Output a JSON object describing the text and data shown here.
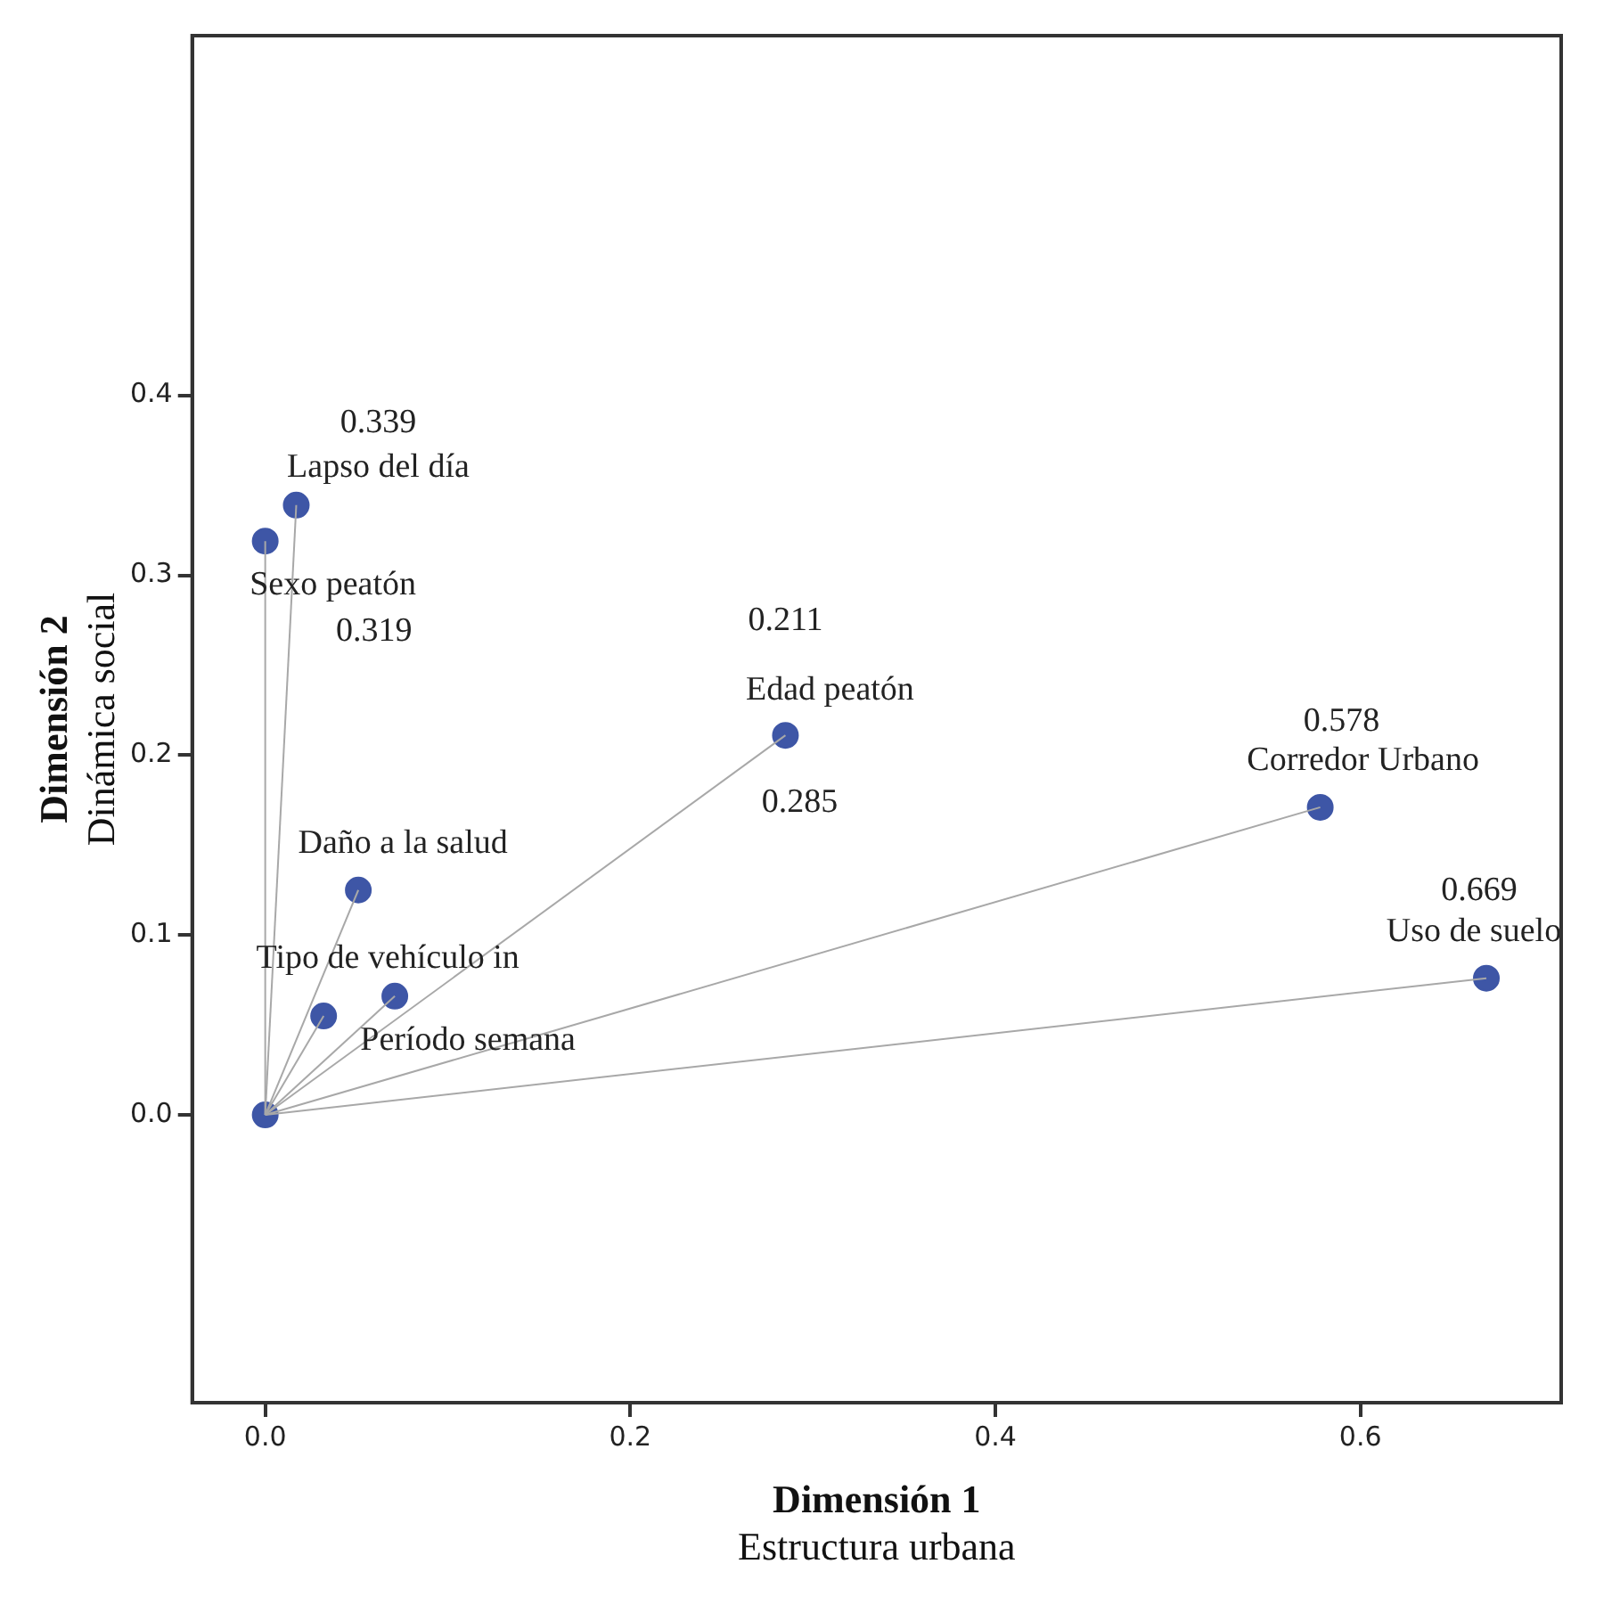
{
  "chart_data": {
    "type": "scatter",
    "xlabel": "Dimensión 1\nEstructura urbana",
    "ylabel": "Dimensión 2\nDinámica social",
    "xlim": [
      -0.04,
      0.71
    ],
    "ylim": [
      -0.16,
      0.6
    ],
    "xticks": [
      {
        "value": 0,
        "label": "0.0"
      },
      0.2,
      0.4,
      0.6
    ],
    "yticks": [
      {
        "value": 0,
        "label": "0.0"
      },
      0.1,
      0.2,
      0.3,
      0.4
    ],
    "grid": false,
    "legend": false,
    "marker": "circle",
    "series": [
      {
        "type": "line",
        "color": "#a8a8a8",
        "marker": "none",
        "x": [
          0,
          0.017
        ],
        "values": [
          0,
          0.339
        ]
      },
      {
        "type": "line",
        "color": "#a8a8a8",
        "marker": "none",
        "x": [
          0,
          0.0
        ],
        "values": [
          0,
          0.319
        ]
      },
      {
        "type": "line",
        "color": "#a8a8a8",
        "marker": "none",
        "x": [
          0,
          0.285
        ],
        "values": [
          0,
          0.211
        ]
      },
      {
        "type": "line",
        "color": "#a8a8a8",
        "marker": "none",
        "x": [
          0,
          0.578
        ],
        "values": [
          0,
          0.171
        ]
      },
      {
        "type": "line",
        "color": "#a8a8a8",
        "marker": "none",
        "x": [
          0,
          0.669
        ],
        "values": [
          0,
          0.076
        ]
      },
      {
        "type": "line",
        "color": "#a8a8a8",
        "marker": "none",
        "x": [
          0,
          0.051
        ],
        "values": [
          0,
          0.125
        ]
      },
      {
        "type": "line",
        "color": "#a8a8a8",
        "marker": "none",
        "x": [
          0,
          0.032
        ],
        "values": [
          0,
          0.055
        ]
      },
      {
        "type": "line",
        "color": "#a8a8a8",
        "marker": "none",
        "x": [
          0,
          0.071
        ],
        "values": [
          0,
          0.066
        ]
      },
      {
        "type": "scatter",
        "color": "#3e56a6",
        "x": [
          0,
          0.017,
          0.0,
          0.285,
          0.578,
          0.669,
          0.051,
          0.032,
          0.071
        ],
        "values": [
          0,
          0.339,
          0.319,
          0.211,
          0.171,
          0.076,
          0.125,
          0.055,
          0.066
        ]
      }
    ],
    "annotations": [
      {
        "text": "0.339",
        "x": 0.017,
        "y": 0.339
      },
      {
        "text": "Lapso del día",
        "x": 0.017,
        "y": 0.339
      },
      {
        "text": "Sexo peatón",
        "x": 0.0,
        "y": 0.319
      },
      {
        "text": "0.319",
        "x": 0.0,
        "y": 0.319
      },
      {
        "text": "0.211",
        "x": 0.285,
        "y": 0.211
      },
      {
        "text": "Edad peatón",
        "x": 0.285,
        "y": 0.211
      },
      {
        "text": "0.285",
        "x": 0.285,
        "y": 0.211
      },
      {
        "text": "0.578",
        "x": 0.578,
        "y": 0.171
      },
      {
        "text": "Corredor Urbano",
        "x": 0.578,
        "y": 0.171
      },
      {
        "text": "0.669",
        "x": 0.669,
        "y": 0.076
      },
      {
        "text": "Uso de suelo",
        "x": 0.669,
        "y": 0.076
      },
      {
        "text": "Daño a la salud",
        "x": 0.051,
        "y": 0.125
      },
      {
        "text": "Tipo de vehículo in",
        "x": 0.032,
        "y": 0.055
      },
      {
        "text": "Período semana",
        "x": 0.071,
        "y": 0.066
      }
    ]
  }
}
